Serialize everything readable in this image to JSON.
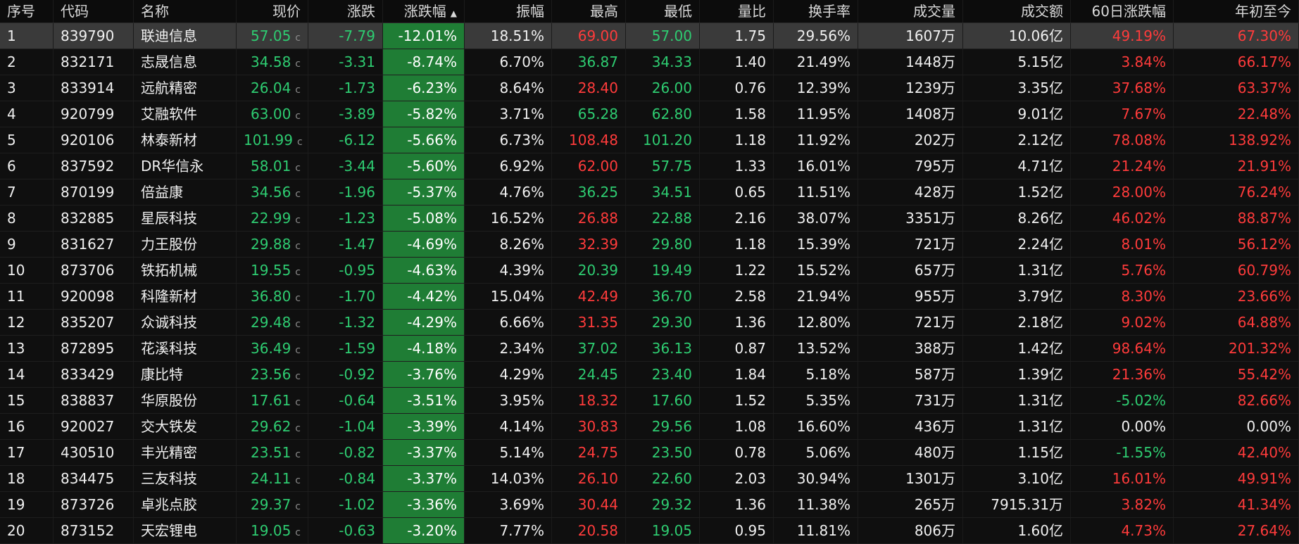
{
  "headers": [
    "序号",
    "代码",
    "名称",
    "现价",
    "涨跌",
    "涨跌幅",
    "振幅",
    "最高",
    "最低",
    "量比",
    "换手率",
    "成交量",
    "成交额",
    "60日涨跌幅",
    "年初至今"
  ],
  "sort_indicator": "▲",
  "rows": [
    {
      "idx": "1",
      "code": "839790",
      "name": "联迪信息",
      "price": "57.05",
      "price_flag": "c",
      "change": "-7.79",
      "pct": "-12.01%",
      "amp": "18.51%",
      "high": "69.00",
      "low": "57.00",
      "vr": "1.75",
      "turn": "29.56%",
      "vol": "1607万",
      "amt": "10.06亿",
      "d60": "49.19%",
      "ytd": "67.30%"
    },
    {
      "idx": "2",
      "code": "832171",
      "name": "志晟信息",
      "price": "34.58",
      "price_flag": "c",
      "change": "-3.31",
      "pct": "-8.74%",
      "amp": "6.70%",
      "high": "36.87",
      "low": "34.33",
      "vr": "1.40",
      "turn": "21.49%",
      "vol": "1448万",
      "amt": "5.15亿",
      "d60": "3.84%",
      "ytd": "66.17%"
    },
    {
      "idx": "3",
      "code": "833914",
      "name": "远航精密",
      "price": "26.04",
      "price_flag": "c",
      "change": "-1.73",
      "pct": "-6.23%",
      "amp": "8.64%",
      "high": "28.40",
      "low": "26.00",
      "vr": "0.76",
      "turn": "12.39%",
      "vol": "1239万",
      "amt": "3.35亿",
      "d60": "37.68%",
      "ytd": "63.37%"
    },
    {
      "idx": "4",
      "code": "920799",
      "name": "艾融软件",
      "price": "63.00",
      "price_flag": "c",
      "change": "-3.89",
      "pct": "-5.82%",
      "amp": "3.71%",
      "high": "65.28",
      "low": "62.80",
      "vr": "1.58",
      "turn": "11.95%",
      "vol": "1408万",
      "amt": "9.01亿",
      "d60": "7.67%",
      "ytd": "22.48%"
    },
    {
      "idx": "5",
      "code": "920106",
      "name": "林泰新材",
      "price": "101.99",
      "price_flag": "c",
      "change": "-6.12",
      "pct": "-5.66%",
      "amp": "6.73%",
      "high": "108.48",
      "low": "101.20",
      "vr": "1.18",
      "turn": "11.92%",
      "vol": "202万",
      "amt": "2.12亿",
      "d60": "78.08%",
      "ytd": "138.92%"
    },
    {
      "idx": "6",
      "code": "837592",
      "name": "DR华信永",
      "price": "58.01",
      "price_flag": "c",
      "change": "-3.44",
      "pct": "-5.60%",
      "amp": "6.92%",
      "high": "62.00",
      "low": "57.75",
      "vr": "1.33",
      "turn": "16.01%",
      "vol": "795万",
      "amt": "4.71亿",
      "d60": "21.24%",
      "ytd": "21.91%"
    },
    {
      "idx": "7",
      "code": "870199",
      "name": "倍益康",
      "price": "34.56",
      "price_flag": "c",
      "change": "-1.96",
      "pct": "-5.37%",
      "amp": "4.76%",
      "high": "36.25",
      "low": "34.51",
      "vr": "0.65",
      "turn": "11.51%",
      "vol": "428万",
      "amt": "1.52亿",
      "d60": "28.00%",
      "ytd": "76.24%"
    },
    {
      "idx": "8",
      "code": "832885",
      "name": "星辰科技",
      "price": "22.99",
      "price_flag": "c",
      "change": "-1.23",
      "pct": "-5.08%",
      "amp": "16.52%",
      "high": "26.88",
      "low": "22.88",
      "vr": "2.16",
      "turn": "38.07%",
      "vol": "3351万",
      "amt": "8.26亿",
      "d60": "46.02%",
      "ytd": "88.87%"
    },
    {
      "idx": "9",
      "code": "831627",
      "name": "力王股份",
      "price": "29.88",
      "price_flag": "c",
      "change": "-1.47",
      "pct": "-4.69%",
      "amp": "8.26%",
      "high": "32.39",
      "low": "29.80",
      "vr": "1.18",
      "turn": "15.39%",
      "vol": "721万",
      "amt": "2.24亿",
      "d60": "8.01%",
      "ytd": "56.12%"
    },
    {
      "idx": "10",
      "code": "873706",
      "name": "铁拓机械",
      "price": "19.55",
      "price_flag": "c",
      "change": "-0.95",
      "pct": "-4.63%",
      "amp": "4.39%",
      "high": "20.39",
      "low": "19.49",
      "vr": "1.22",
      "turn": "15.52%",
      "vol": "657万",
      "amt": "1.31亿",
      "d60": "5.76%",
      "ytd": "60.79%"
    },
    {
      "idx": "11",
      "code": "920098",
      "name": "科隆新材",
      "price": "36.80",
      "price_flag": "c",
      "change": "-1.70",
      "pct": "-4.42%",
      "amp": "15.04%",
      "high": "42.49",
      "low": "36.70",
      "vr": "2.58",
      "turn": "21.94%",
      "vol": "955万",
      "amt": "3.79亿",
      "d60": "8.30%",
      "ytd": "23.66%"
    },
    {
      "idx": "12",
      "code": "835207",
      "name": "众诚科技",
      "price": "29.48",
      "price_flag": "c",
      "change": "-1.32",
      "pct": "-4.29%",
      "amp": "6.66%",
      "high": "31.35",
      "low": "29.30",
      "vr": "1.36",
      "turn": "12.80%",
      "vol": "721万",
      "amt": "2.18亿",
      "d60": "9.02%",
      "ytd": "64.88%"
    },
    {
      "idx": "13",
      "code": "872895",
      "name": "花溪科技",
      "price": "36.49",
      "price_flag": "c",
      "change": "-1.59",
      "pct": "-4.18%",
      "amp": "2.34%",
      "high": "37.02",
      "low": "36.13",
      "vr": "0.87",
      "turn": "13.52%",
      "vol": "388万",
      "amt": "1.42亿",
      "d60": "98.64%",
      "ytd": "201.32%"
    },
    {
      "idx": "14",
      "code": "833429",
      "name": "康比特",
      "price": "23.56",
      "price_flag": "c",
      "change": "-0.92",
      "pct": "-3.76%",
      "amp": "4.29%",
      "high": "24.45",
      "low": "23.40",
      "vr": "1.84",
      "turn": "5.18%",
      "vol": "587万",
      "amt": "1.39亿",
      "d60": "21.36%",
      "ytd": "55.42%"
    },
    {
      "idx": "15",
      "code": "838837",
      "name": "华原股份",
      "price": "17.61",
      "price_flag": "c",
      "change": "-0.64",
      "pct": "-3.51%",
      "amp": "3.95%",
      "high": "18.32",
      "low": "17.60",
      "vr": "1.52",
      "turn": "5.35%",
      "vol": "731万",
      "amt": "1.31亿",
      "d60": "-5.02%",
      "ytd": "82.66%"
    },
    {
      "idx": "16",
      "code": "920027",
      "name": "交大铁发",
      "price": "29.62",
      "price_flag": "c",
      "change": "-1.04",
      "pct": "-3.39%",
      "amp": "4.14%",
      "high": "30.83",
      "low": "29.56",
      "vr": "1.08",
      "turn": "16.60%",
      "vol": "436万",
      "amt": "1.31亿",
      "d60": "0.00%",
      "ytd": "0.00%"
    },
    {
      "idx": "17",
      "code": "430510",
      "name": "丰光精密",
      "price": "23.51",
      "price_flag": "c",
      "change": "-0.82",
      "pct": "-3.37%",
      "amp": "5.14%",
      "high": "24.75",
      "low": "23.50",
      "vr": "0.78",
      "turn": "5.06%",
      "vol": "480万",
      "amt": "1.15亿",
      "d60": "-1.55%",
      "ytd": "42.40%"
    },
    {
      "idx": "18",
      "code": "834475",
      "name": "三友科技",
      "price": "24.11",
      "price_flag": "c",
      "change": "-0.84",
      "pct": "-3.37%",
      "amp": "14.03%",
      "high": "26.10",
      "low": "22.60",
      "vr": "2.03",
      "turn": "30.94%",
      "vol": "1301万",
      "amt": "3.10亿",
      "d60": "16.01%",
      "ytd": "49.91%"
    },
    {
      "idx": "19",
      "code": "873726",
      "name": "卓兆点胶",
      "price": "29.37",
      "price_flag": "c",
      "change": "-1.02",
      "pct": "-3.36%",
      "amp": "3.69%",
      "high": "30.44",
      "low": "29.32",
      "vr": "1.36",
      "turn": "11.38%",
      "vol": "265万",
      "amt": "7915.31万",
      "d60": "3.82%",
      "ytd": "41.34%"
    },
    {
      "idx": "20",
      "code": "873152",
      "name": "天宏锂电",
      "price": "19.05",
      "price_flag": "c",
      "change": "-0.63",
      "pct": "-3.20%",
      "amp": "7.77%",
      "high": "20.58",
      "low": "19.05",
      "vr": "0.95",
      "turn": "11.81%",
      "vol": "806万",
      "amt": "1.60亿",
      "d60": "4.73%",
      "ytd": "27.64%"
    }
  ],
  "colors": {
    "background": "#0f0f0f",
    "highlight_row": "#3a3a3a",
    "green": "#2ecc71",
    "red": "#ff3b3b",
    "pct_bg": "#1f7d35"
  }
}
